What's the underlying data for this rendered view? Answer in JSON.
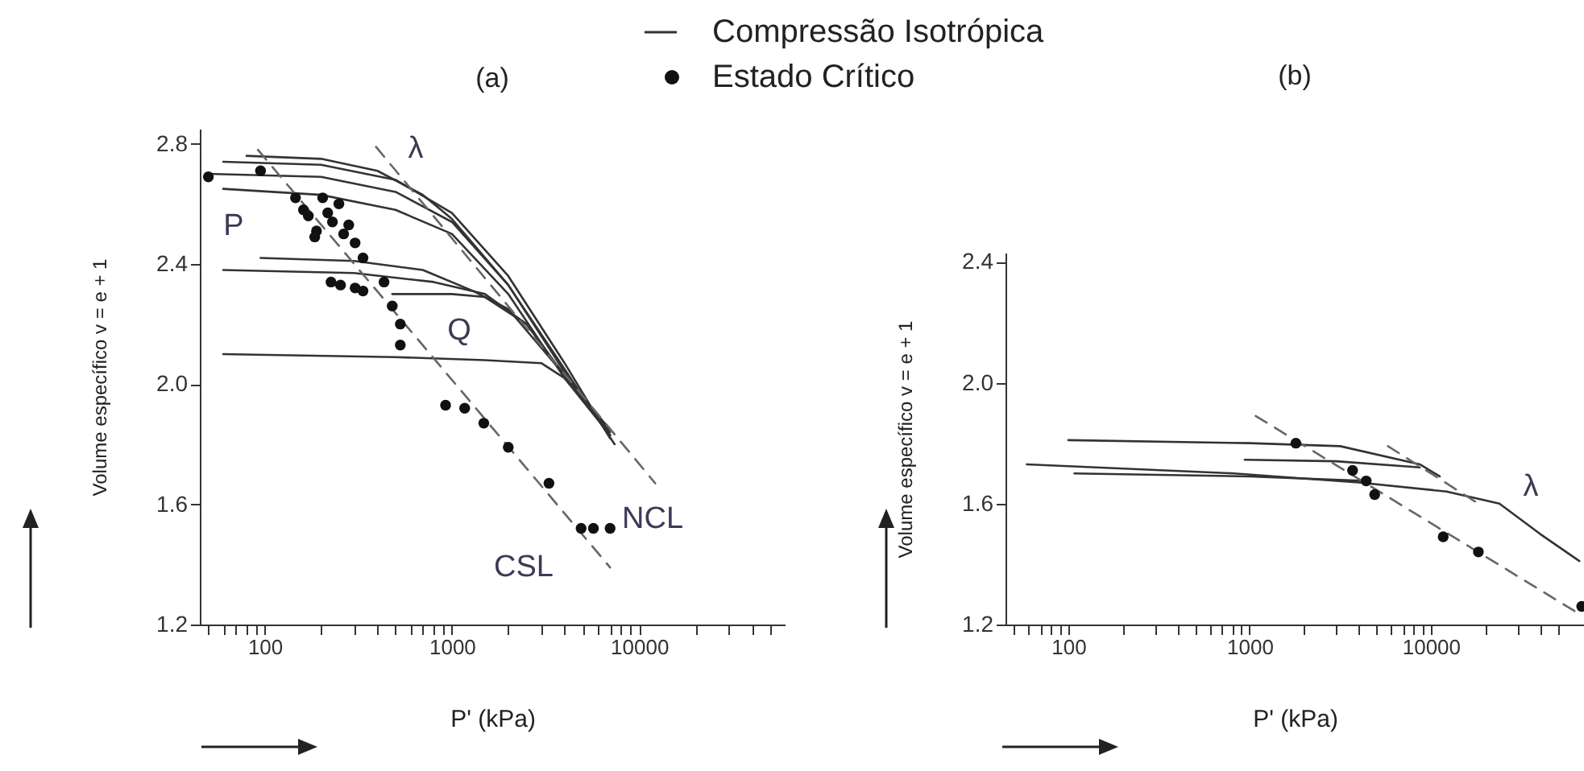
{
  "chart_data": [
    {
      "type": "line",
      "title": "(a)",
      "xlabel": "P' (kPa)",
      "ylabel": "Volume específico v = e + 1",
      "log": "x",
      "legend": "top",
      "xlim": [
        45,
        60000
      ],
      "ylim": [
        1.2,
        2.85
      ],
      "xticks": [
        {
          "value": 50,
          "label": null
        },
        {
          "value": 60,
          "label": null
        },
        {
          "value": 70,
          "label": null
        },
        {
          "value": 80,
          "label": null
        },
        {
          "value": 90,
          "label": null
        },
        100,
        {
          "value": 200,
          "label": null
        },
        {
          "value": 300,
          "label": null
        },
        {
          "value": 400,
          "label": null
        },
        {
          "value": 500,
          "label": null
        },
        {
          "value": 600,
          "label": null
        },
        {
          "value": 700,
          "label": null
        },
        {
          "value": 800,
          "label": null
        },
        {
          "value": 900,
          "label": null
        },
        1000,
        {
          "value": 2000,
          "label": null
        },
        {
          "value": 3000,
          "label": null
        },
        {
          "value": 4000,
          "label": null
        },
        {
          "value": 5000,
          "label": null
        },
        {
          "value": 6000,
          "label": null
        },
        {
          "value": 7000,
          "label": null
        },
        {
          "value": 8000,
          "label": null
        },
        {
          "value": 9000,
          "label": null
        },
        10000,
        {
          "value": 20000,
          "label": null
        },
        {
          "value": 30000,
          "label": null
        },
        {
          "value": 40000,
          "label": null
        },
        {
          "value": 50000,
          "label": null
        }
      ],
      "yticks": [
        1.2,
        1.6,
        {
          "value": 2,
          "label": "2.0"
        },
        2.4,
        2.8
      ],
      "annotations": [
        "P",
        "Q",
        "λ",
        "NCL",
        "CSL"
      ],
      "series": [
        {
          "name": "Compressão Isotrópica",
          "color": "#333333",
          "line_style": "solid",
          "x": [
            80,
            200,
            400,
            700,
            1000,
            2000,
            4000,
            7400
          ],
          "values": [
            2.76,
            2.75,
            2.71,
            2.63,
            2.55,
            2.33,
            2.05,
            1.8
          ]
        },
        {
          "color": "#333333",
          "line_style": "solid",
          "x": [
            60,
            200,
            500,
            1000,
            2000,
            4000,
            7000
          ],
          "values": [
            2.74,
            2.73,
            2.68,
            2.57,
            2.36,
            2.07,
            1.82
          ]
        },
        {
          "color": "#333333",
          "line_style": "solid",
          "x": [
            50,
            200,
            500,
            1000,
            2000,
            4000,
            7000
          ],
          "values": [
            2.7,
            2.69,
            2.64,
            2.54,
            2.33,
            2.04,
            1.83
          ]
        },
        {
          "color": "#333333",
          "line_style": "solid",
          "x": [
            60,
            200,
            500,
            1000,
            2000,
            4000,
            7000
          ],
          "values": [
            2.65,
            2.63,
            2.58,
            2.5,
            2.3,
            2.02,
            1.85
          ]
        },
        {
          "color": "#333333",
          "line_style": "solid",
          "x": [
            95,
            300,
            700,
            1300,
            2000,
            4000,
            7000
          ],
          "values": [
            2.42,
            2.41,
            2.38,
            2.31,
            2.25,
            2.03,
            1.83
          ]
        },
        {
          "color": "#333333",
          "line_style": "solid",
          "x": [
            60,
            300,
            800,
            1500,
            2500,
            4000,
            7000
          ],
          "values": [
            2.38,
            2.37,
            2.34,
            2.3,
            2.2,
            2.03,
            1.84
          ]
        },
        {
          "color": "#333333",
          "line_style": "solid",
          "x": [
            480,
            1000,
            1500,
            2500
          ],
          "values": [
            2.3,
            2.3,
            2.29,
            2.2
          ]
        },
        {
          "color": "#333333",
          "line_style": "solid",
          "x": [
            60,
            500,
            1500,
            3000,
            4000,
            7000
          ],
          "values": [
            2.1,
            2.09,
            2.08,
            2.07,
            2.02,
            1.83
          ]
        },
        {
          "color": "#666666",
          "line_style": "dashed",
          "x": [
            92,
            7000
          ],
          "values": [
            2.78,
            1.39
          ]
        },
        {
          "color": "#666666",
          "line_style": "dashed",
          "x": [
            393,
            12200
          ],
          "values": [
            2.79,
            1.67
          ]
        },
        {
          "name": "Estado Crítico",
          "type": "scatter",
          "marker": "circle",
          "color": "#111111",
          "x": [
            50,
            95,
            146,
            161,
            171,
            189,
            185,
            204,
            217,
            230,
            249,
            264,
            281,
            304,
            335,
            226,
            254,
            304,
            335,
            434,
            480,
            530,
            530,
            925,
            1170,
            1480,
            2000,
            3300,
            4900,
            5700,
            7000
          ],
          "values": [
            2.69,
            2.71,
            2.62,
            2.58,
            2.56,
            2.51,
            2.49,
            2.62,
            2.57,
            2.54,
            2.6,
            2.5,
            2.53,
            2.47,
            2.42,
            2.34,
            2.33,
            2.32,
            2.31,
            2.34,
            2.26,
            2.2,
            2.13,
            1.93,
            1.92,
            1.87,
            1.79,
            1.67,
            1.52,
            1.52,
            1.52
          ]
        }
      ]
    },
    {
      "type": "line",
      "title": "(b)",
      "xlabel": "P' (kPa)",
      "ylabel": "Volume específico v = e + 1",
      "log": "x",
      "xlim": [
        45,
        70000
      ],
      "ylim": [
        1.2,
        2.43
      ],
      "xticks": [
        {
          "value": 50,
          "label": null
        },
        {
          "value": 60,
          "label": null
        },
        {
          "value": 70,
          "label": null
        },
        {
          "value": 80,
          "label": null
        },
        {
          "value": 90,
          "label": null
        },
        100,
        {
          "value": 200,
          "label": null
        },
        {
          "value": 300,
          "label": null
        },
        {
          "value": 400,
          "label": null
        },
        {
          "value": 500,
          "label": null
        },
        {
          "value": 600,
          "label": null
        },
        {
          "value": 700,
          "label": null
        },
        {
          "value": 800,
          "label": null
        },
        {
          "value": 900,
          "label": null
        },
        1000,
        {
          "value": 2000,
          "label": null
        },
        {
          "value": 3000,
          "label": null
        },
        {
          "value": 4000,
          "label": null
        },
        {
          "value": 5000,
          "label": null
        },
        {
          "value": 6000,
          "label": null
        },
        {
          "value": 7000,
          "label": null
        },
        {
          "value": 8000,
          "label": null
        },
        {
          "value": 9000,
          "label": null
        },
        10000,
        {
          "value": 20000,
          "label": null
        },
        {
          "value": 30000,
          "label": null
        },
        {
          "value": 40000,
          "label": null
        },
        {
          "value": 50000,
          "label": null
        }
      ],
      "yticks": [
        1.2,
        1.6,
        {
          "value": 2,
          "label": "2.0"
        },
        2.4
      ],
      "annotations": [
        "λ"
      ],
      "series": [
        {
          "color": "#333333",
          "line_style": "solid",
          "x": [
            100,
            1000,
            3160,
            8700,
            11200
          ],
          "values": [
            1.81,
            1.8,
            1.79,
            1.73,
            1.69
          ]
        },
        {
          "color": "#333333",
          "line_style": "solid",
          "x": [
            940,
            3000,
            8700
          ],
          "values": [
            1.745,
            1.74,
            1.72
          ]
        },
        {
          "color": "#333333",
          "line_style": "solid",
          "x": [
            59,
            820,
            4000,
            12200,
            23900,
            40000,
            66000
          ],
          "values": [
            1.73,
            1.7,
            1.67,
            1.64,
            1.6,
            1.5,
            1.41
          ]
        },
        {
          "color": "#333333",
          "line_style": "solid",
          "x": [
            108,
            1000,
            4400
          ],
          "values": [
            1.7,
            1.69,
            1.675
          ]
        },
        {
          "color": "#666666",
          "line_style": "dashed",
          "x": [
            1080,
            68000
          ],
          "values": [
            1.89,
            1.23
          ]
        },
        {
          "color": "#666666",
          "line_style": "dashed",
          "x": [
            5800,
            18300
          ],
          "values": [
            1.79,
            1.6
          ]
        },
        {
          "type": "scatter",
          "marker": "circle",
          "color": "#111111",
          "x": [
            1800,
            3700,
            4400,
            4900,
            11700,
            18300,
            68000
          ],
          "values": [
            1.8,
            1.71,
            1.675,
            1.63,
            1.49,
            1.44,
            1.26
          ]
        }
      ]
    }
  ]
}
